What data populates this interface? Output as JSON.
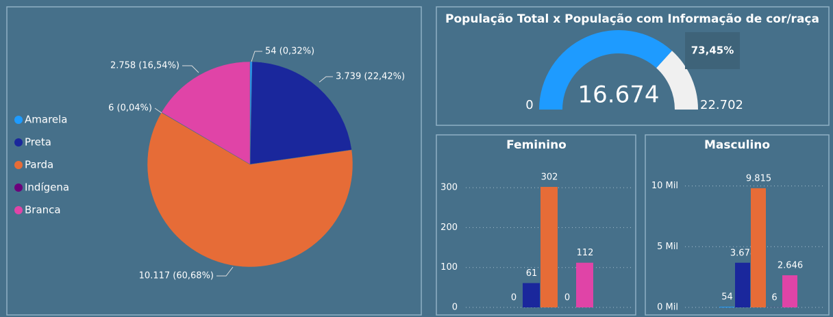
{
  "chart_data": [
    {
      "type": "pie",
      "categories": [
        "Amarela",
        "Preta",
        "Parda",
        "Indígena",
        "Branca"
      ],
      "values": [
        54,
        3739,
        10117,
        6,
        2758
      ],
      "value_labels": [
        "54 (0,32%)",
        "3.739 (22,42%)",
        "10.117 (60,68%)",
        "6 (0,04%)",
        "2.758 (16,54%)"
      ],
      "colors": [
        "#1e9bff",
        "#1a279c",
        "#e66c37",
        "#6b007b",
        "#e044a7"
      ],
      "legend": "left"
    },
    {
      "type": "gauge",
      "title": "População Total x População com Informação de cor/raça",
      "value": 16674,
      "value_label": "16.674",
      "min": 0,
      "max": 22702,
      "max_label": "22.702",
      "percent": 73.45,
      "percent_label": "73,45%",
      "colors": [
        "#1e9bff",
        "#f0f0f0"
      ]
    },
    {
      "type": "bar",
      "title": "Feminino",
      "values": [
        0,
        61,
        302,
        0,
        112
      ],
      "colors": [
        "#1e9bff",
        "#1a279c",
        "#e66c37",
        "#6b007b",
        "#e044a7"
      ],
      "ylim": [
        0,
        350
      ],
      "yticks": [
        0,
        100,
        200,
        300
      ],
      "grid": true
    },
    {
      "type": "bar",
      "title": "Masculino",
      "values": [
        54,
        3678,
        9815,
        6,
        2646
      ],
      "value_labels": [
        "54",
        "3.678",
        "9.815",
        "6",
        "2.646"
      ],
      "colors": [
        "#1e9bff",
        "#1a279c",
        "#e66c37",
        "#6b007b",
        "#e044a7"
      ],
      "ylim": [
        0,
        11500
      ],
      "yticks": [
        {
          "value": 0,
          "label": "0 Mil"
        },
        {
          "value": 5000,
          "label": "5 Mil"
        },
        {
          "value": 10000,
          "label": "10 Mil"
        }
      ],
      "grid": true
    }
  ]
}
